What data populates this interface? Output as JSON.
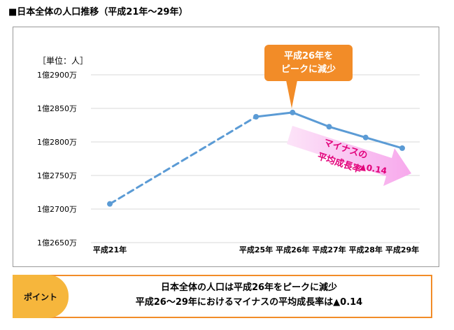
{
  "page_title": "■日本全体の人口推移（平成21年～29年）",
  "chart_data": {
    "type": "line",
    "title": "",
    "unit_label": "［単位：人］",
    "categories": [
      "平成21年",
      "平成25年",
      "平成26年",
      "平成27年",
      "平成28年",
      "平成29年"
    ],
    "series": [
      {
        "values": [
          127076183,
          128374985,
          128438348,
          128226483,
          128066211,
          127907086
        ],
        "color": "#5b9bd5",
        "dashed_segments": [
          [
            0,
            1
          ]
        ]
      }
    ],
    "ylim": [
      126500000,
      129000000
    ],
    "yticks": [
      126500000,
      127000000,
      127500000,
      128000000,
      128500000,
      129000000
    ],
    "ytick_labels": [
      "1億2650万",
      "1億2700万",
      "1億2750万",
      "1億2800万",
      "1億2850万",
      "1億2900万"
    ],
    "grid": true,
    "annotations": {
      "peak_callout": [
        "平成26年を",
        "ピークに減少"
      ],
      "decline_arrow": [
        "マイナスの",
        "平均成長率"
      ],
      "decline_value": "▲0.14"
    }
  },
  "point_panel": {
    "tag": "ポイント",
    "lines": [
      "日本全体の人口は平成26年をピークに減少",
      "平成26～29年におけるマイナスの平均成長率は▲0.14"
    ]
  },
  "colors": {
    "line": "#5b9bd5",
    "callout": "#f28c28",
    "point_tag": "#f6b63c",
    "decline_arrow": "#fbb8f2",
    "decline_text": "#e2007a"
  }
}
